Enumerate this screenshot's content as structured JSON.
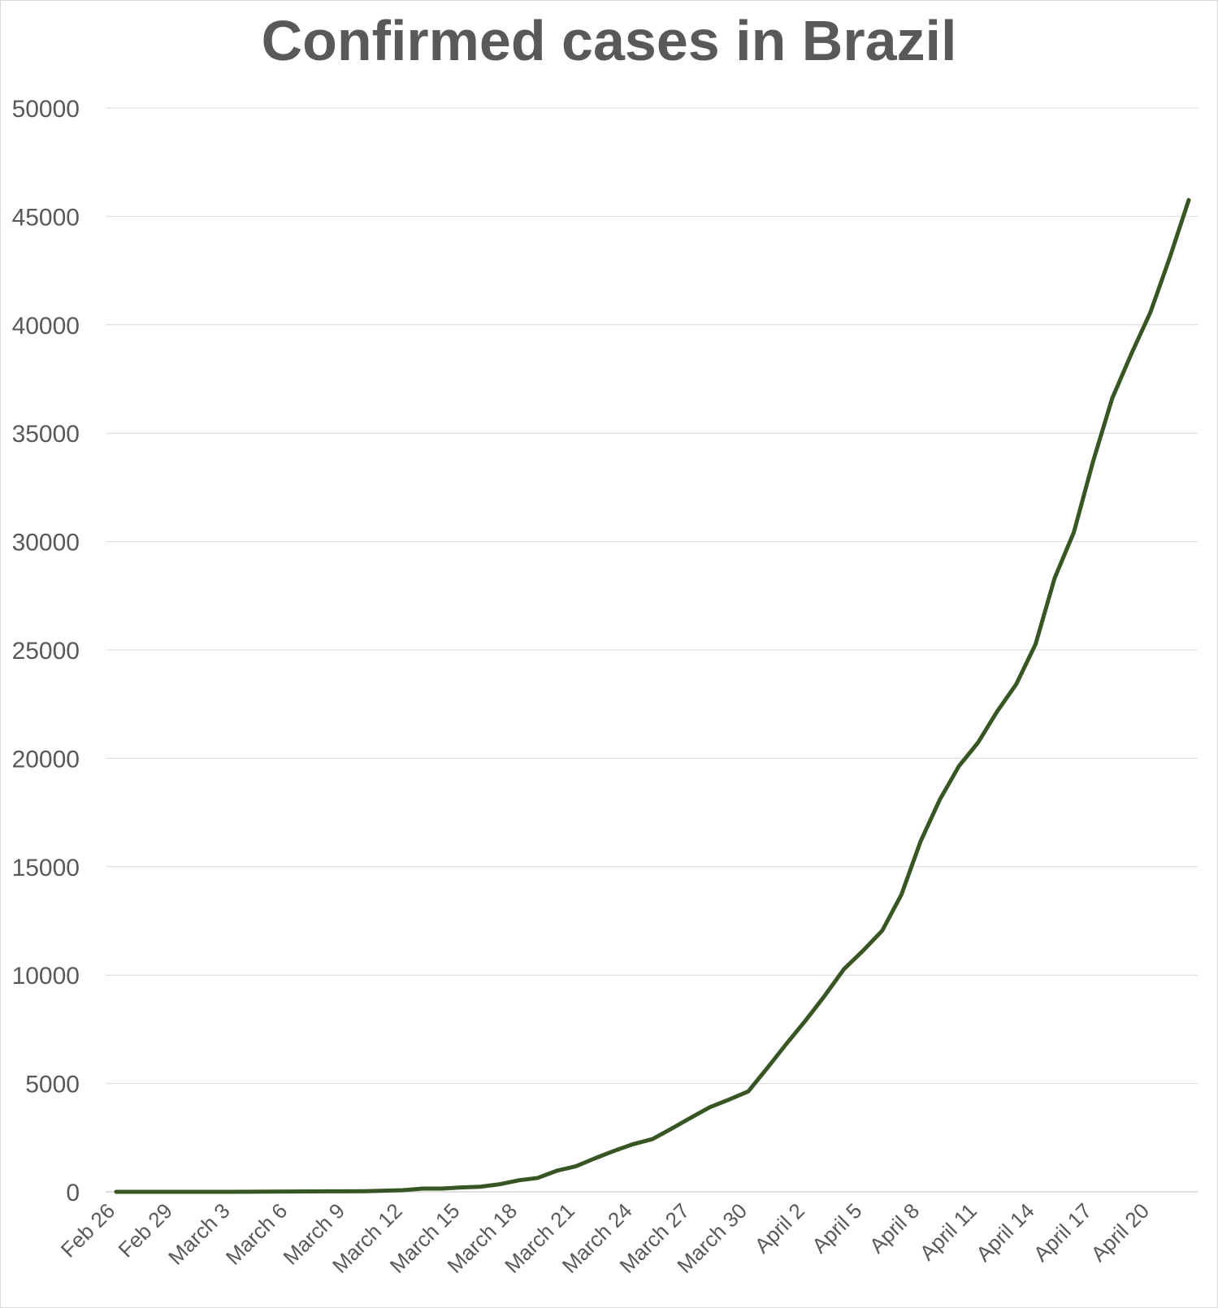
{
  "chart_data": {
    "type": "line",
    "title": "Confirmed cases in Brazil",
    "xlabel": "",
    "ylabel": "",
    "ylim": [
      0,
      50000
    ],
    "yticks": [
      0,
      5000,
      10000,
      15000,
      20000,
      25000,
      30000,
      35000,
      40000,
      45000,
      50000
    ],
    "ytick_labels": [
      "0",
      "5000",
      "10000",
      "15000",
      "20000",
      "25000",
      "30000",
      "35000",
      "40000",
      "45000",
      "50000"
    ],
    "grid": "horizontal",
    "line_color": "#375623",
    "x_tick_labels": [
      "Feb 26",
      "Feb 29",
      "March 3",
      "March 6",
      "March 9",
      "March 12",
      "March 15",
      "March 18",
      "March 21",
      "March 24",
      "March 27",
      "March 30",
      "April 2",
      "April 5",
      "April 8",
      "April 11",
      "April 14",
      "April 17",
      "April 20"
    ],
    "x": [
      "Feb 26",
      "Feb 27",
      "Feb 28",
      "Feb 29",
      "March 1",
      "March 2",
      "March 3",
      "March 4",
      "March 5",
      "March 6",
      "March 7",
      "March 8",
      "March 9",
      "March 10",
      "March 11",
      "March 12",
      "March 13",
      "March 14",
      "March 15",
      "March 16",
      "March 17",
      "March 18",
      "March 19",
      "March 20",
      "March 21",
      "March 22",
      "March 23",
      "March 24",
      "March 25",
      "March 26",
      "March 27",
      "March 28",
      "March 29",
      "March 30",
      "March 31",
      "April 1",
      "April 2",
      "April 3",
      "April 4",
      "April 5",
      "April 6",
      "April 7",
      "April 8",
      "April 9",
      "April 10",
      "April 11",
      "April 12",
      "April 13",
      "April 14",
      "April 15",
      "April 16",
      "April 17",
      "April 18",
      "April 19",
      "April 20",
      "April 21",
      "April 22"
    ],
    "series": [
      {
        "values": [
          1,
          1,
          1,
          2,
          2,
          2,
          2,
          3,
          8,
          13,
          20,
          25,
          25,
          30,
          52,
          77,
          151,
          151,
          200,
          234,
          346,
          529,
          640,
          970,
          1178,
          1546,
          1891,
          2201,
          2433,
          2915,
          3417,
          3904,
          4256,
          4630,
          5717,
          6836,
          7910,
          9056,
          10278,
          11130,
          12056,
          13717,
          16170,
          18092,
          19638,
          20727,
          22169,
          23430,
          25262,
          28320,
          30425,
          33682,
          36599,
          38654,
          40581,
          43079,
          45757
        ]
      }
    ]
  }
}
